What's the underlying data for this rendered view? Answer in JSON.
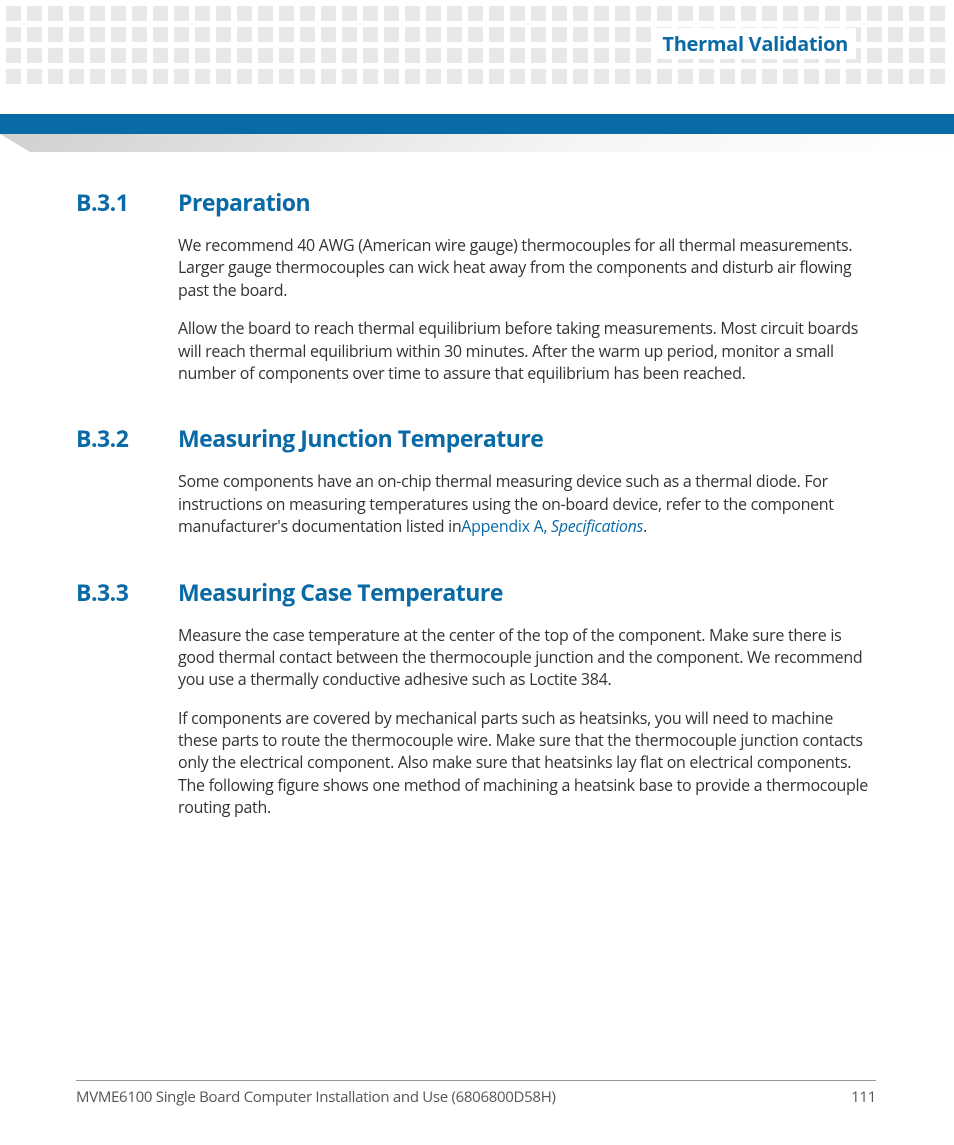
{
  "header": {
    "title": "Thermal Validation",
    "dot_color": "#e8e8e8",
    "bar_color": "#0a6aa6"
  },
  "sections": [
    {
      "number": "B.3.1",
      "title": "Preparation",
      "paragraphs": [
        "We recommend 40 AWG (American wire gauge) thermocouples for all thermal measurements. Larger gauge thermocouples can wick heat away from the components and disturb air flowing past the board.",
        "Allow the board to reach thermal equilibrium before taking measurements. Most circuit boards will reach thermal equilibrium within 30 minutes. After the warm up period, monitor a small number of components over time to assure that equilibrium has been reached."
      ]
    },
    {
      "number": "B.3.2",
      "title": "Measuring Junction Temperature",
      "paragraphs_parts": [
        [
          {
            "text": "Some components have an on-chip thermal measuring device such as a thermal diode. For instructions on measuring temperatures using the on-board device, refer to the component manufacturer's documentation listed in"
          },
          {
            "text": "Appendix A, ",
            "link": true
          },
          {
            "text": "Specifications",
            "link": true,
            "italic": true
          },
          {
            "text": "."
          }
        ]
      ]
    },
    {
      "number": "B.3.3",
      "title": "Measuring Case Temperature",
      "paragraphs": [
        "Measure the case temperature at the center of the top of the component. Make sure there is good thermal contact between the thermocouple junction and the component. We recommend you use a thermally conductive adhesive such as Loctite 384.",
        "If components are covered by mechanical parts such as heatsinks, you will need to machine these parts to route the thermocouple wire. Make sure that the thermocouple junction contacts only the electrical component. Also make sure that heatsinks lay flat on electrical components. The following figure shows one method of machining a heatsink base to provide a thermocouple routing path."
      ]
    }
  ],
  "footer": {
    "left": "MVME6100 Single Board Computer Installation and Use (6806800D58H)",
    "page": "111"
  },
  "colors": {
    "heading": "#0a6aa6",
    "body": "#333333",
    "link": "#0a6aa6"
  }
}
